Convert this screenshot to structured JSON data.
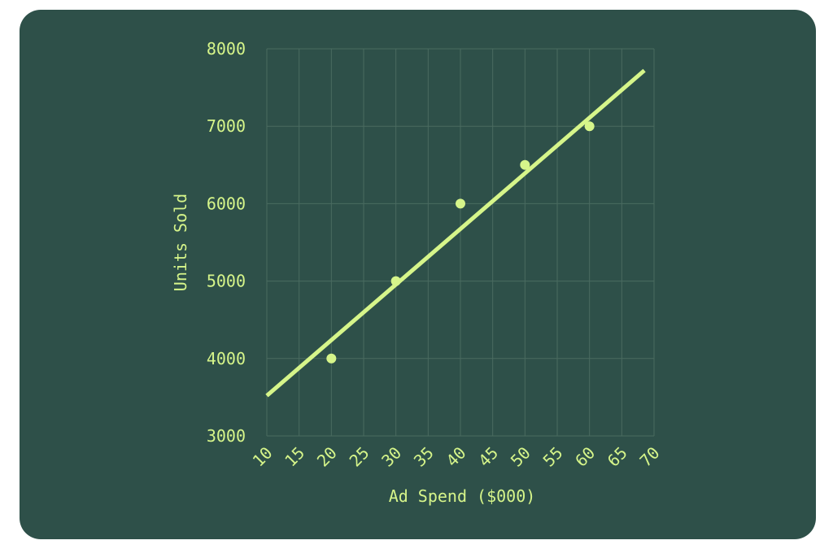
{
  "chart_data": {
    "type": "scatter",
    "title": "",
    "xlabel": "Ad Spend ($000)",
    "ylabel": "Units Sold",
    "xlim": [
      10,
      70
    ],
    "ylim": [
      3000,
      8000
    ],
    "x_ticks": [
      "10",
      "15",
      "20",
      "25",
      "30",
      "35",
      "40",
      "45",
      "50",
      "55",
      "60",
      "65",
      "70"
    ],
    "y_ticks": [
      "3000",
      "4000",
      "5000",
      "6000",
      "7000",
      "8000"
    ],
    "grid": true,
    "points": [
      {
        "x": 20,
        "y": 4000
      },
      {
        "x": 30,
        "y": 5000
      },
      {
        "x": 40,
        "y": 6000
      },
      {
        "x": 50,
        "y": 6500
      },
      {
        "x": 60,
        "y": 7000
      }
    ],
    "trendline": {
      "x": [
        10,
        68.5
      ],
      "y": [
        3520,
        7720
      ]
    },
    "colors": {
      "background": "#2e5049",
      "accent": "#d6f58a",
      "grid": "#4a6b60"
    }
  }
}
